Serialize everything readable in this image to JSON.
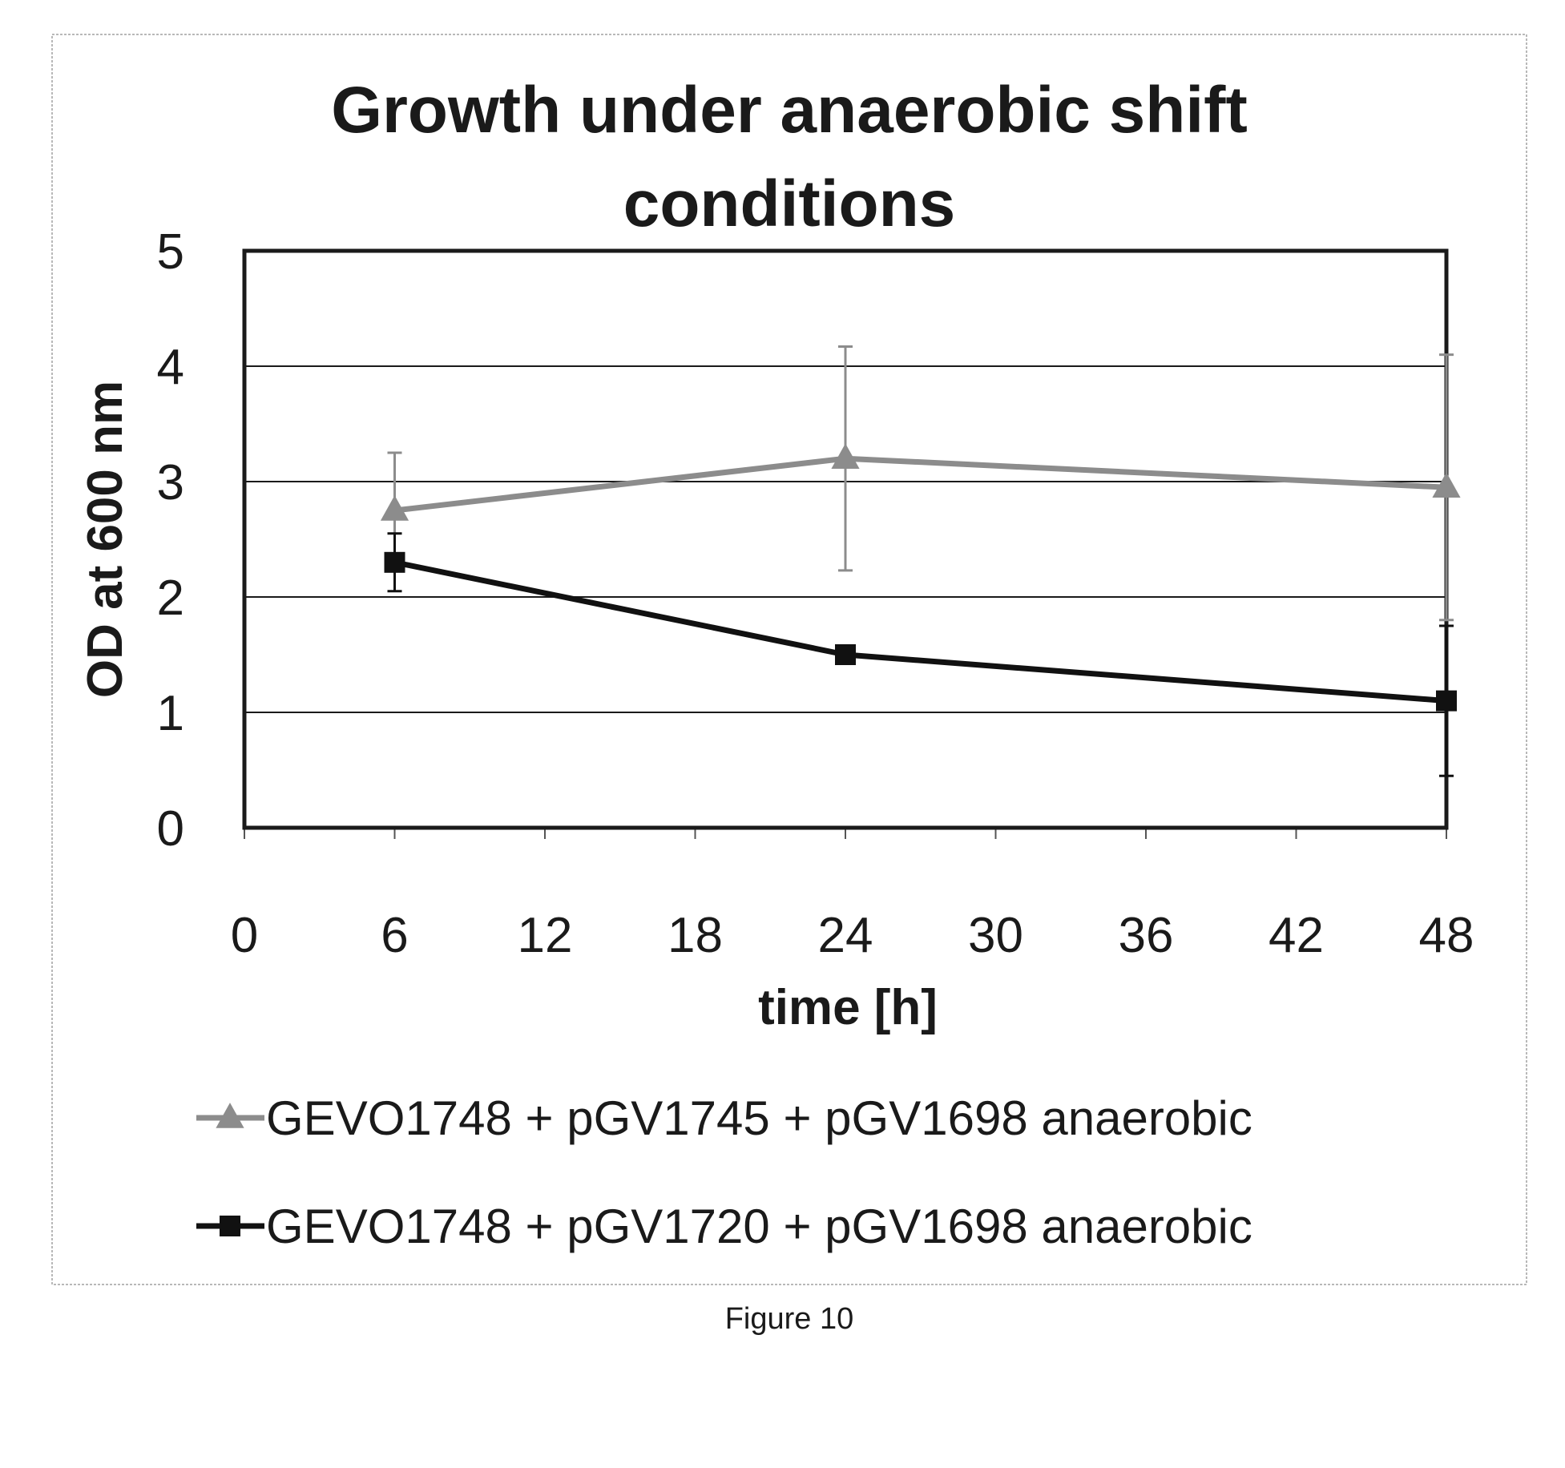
{
  "caption": "Figure 10",
  "chart_data": {
    "type": "line",
    "title": "Growth under anaerobic shift conditions",
    "title_lines": [
      "Growth under anaerobic shift",
      "conditions"
    ],
    "xlabel": "time [h]",
    "ylabel": "OD at 600 nm",
    "xlim": [
      0,
      48
    ],
    "ylim": [
      0,
      5
    ],
    "xticks": [
      "0",
      "6",
      "12",
      "18",
      "24",
      "30",
      "36",
      "42",
      "48"
    ],
    "yticks": [
      "0",
      "1",
      "2",
      "3",
      "4",
      "5"
    ],
    "grid": "horizontal",
    "legend_position": "bottom",
    "series": [
      {
        "name": "GEVO1748 + pGV1745 + pGV1698 anaerobic",
        "marker": "triangle",
        "color": "#8c8c8c",
        "x": [
          6,
          24,
          48
        ],
        "y": [
          2.75,
          3.2,
          2.95
        ],
        "error": [
          0.5,
          0.97,
          1.15
        ]
      },
      {
        "name": "GEVO1748 + pGV1720 + pGV1698 anaerobic",
        "marker": "square",
        "color": "#111111",
        "x": [
          6,
          24,
          48
        ],
        "y": [
          2.3,
          1.5,
          1.1
        ],
        "error": [
          0.25,
          0.05,
          0.65
        ]
      }
    ]
  }
}
